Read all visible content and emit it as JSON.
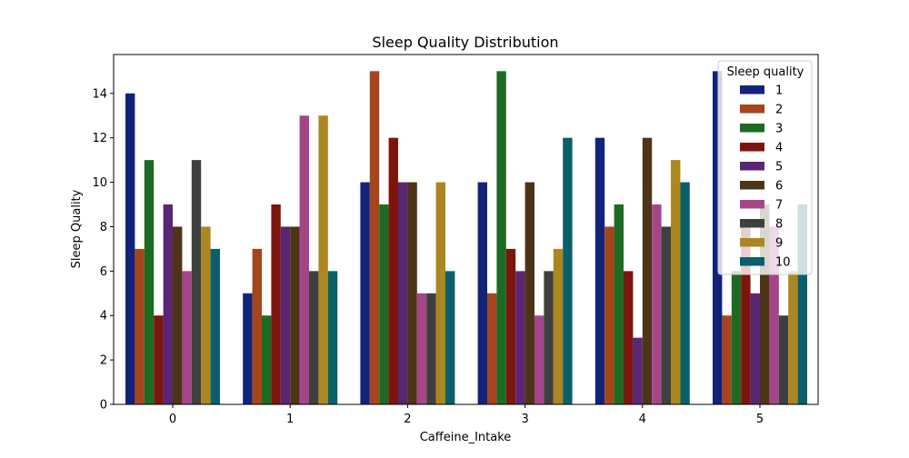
{
  "chart_data": {
    "type": "bar",
    "title": "Sleep Quality Distribution",
    "xlabel": "Caffeine_Intake",
    "ylabel": "Sleep Quality",
    "ylim": [
      0,
      15.75
    ],
    "yticks": [
      0,
      2,
      4,
      6,
      8,
      10,
      12,
      14
    ],
    "categories": [
      "0",
      "1",
      "2",
      "3",
      "4",
      "5"
    ],
    "legend": {
      "title": "Sleep quality",
      "placement": "top-right"
    },
    "grid": false,
    "series": [
      {
        "name": "1",
        "color": "#12237a",
        "values": [
          14,
          5,
          10,
          10,
          12,
          15
        ]
      },
      {
        "name": "2",
        "color": "#a4451d",
        "values": [
          7,
          7,
          15,
          5,
          8,
          4
        ]
      },
      {
        "name": "3",
        "color": "#1d6b22",
        "values": [
          11,
          4,
          9,
          15,
          9,
          6
        ]
      },
      {
        "name": "4",
        "color": "#7d150f",
        "values": [
          4,
          9,
          12,
          7,
          6,
          8
        ]
      },
      {
        "name": "5",
        "color": "#5a2673",
        "values": [
          9,
          8,
          10,
          6,
          3,
          5
        ]
      },
      {
        "name": "6",
        "color": "#4e3417",
        "values": [
          8,
          8,
          10,
          10,
          12,
          9
        ]
      },
      {
        "name": "7",
        "color": "#a4458a",
        "values": [
          6,
          13,
          5,
          4,
          9,
          8
        ]
      },
      {
        "name": "8",
        "color": "#3f3f3f",
        "values": [
          11,
          6,
          5,
          6,
          8,
          4
        ]
      },
      {
        "name": "9",
        "color": "#ab8621",
        "values": [
          8,
          13,
          10,
          7,
          11,
          6
        ]
      },
      {
        "name": "10",
        "color": "#0a5f6b",
        "values": [
          7,
          6,
          6,
          12,
          10,
          9
        ]
      }
    ]
  }
}
